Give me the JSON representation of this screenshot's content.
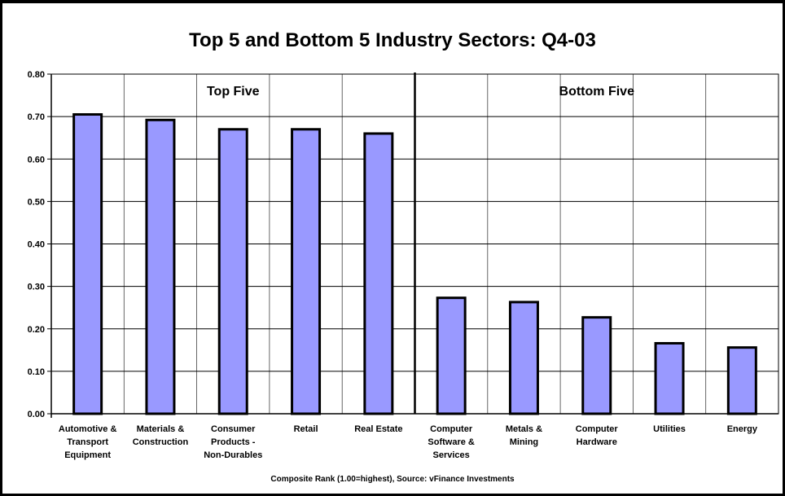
{
  "chart_data": {
    "type": "bar",
    "title": "Top 5 and Bottom 5 Industry Sectors: Q4-03",
    "xlabel": "Composite Rank (1.00=highest), Source: vFinance Investments",
    "ylabel": "",
    "ylim": [
      0,
      0.8
    ],
    "yticks": [
      "0.00",
      "0.10",
      "0.20",
      "0.30",
      "0.40",
      "0.50",
      "0.60",
      "0.70",
      "0.80"
    ],
    "ytick_values": [
      0,
      0.1,
      0.2,
      0.3,
      0.4,
      0.5,
      0.6,
      0.7,
      0.8
    ],
    "categories": [
      [
        "Automotive &",
        "Transport",
        "Equipment"
      ],
      [
        "Materials &",
        "Construction"
      ],
      [
        "Consumer",
        "Products -",
        "Non-Durables"
      ],
      [
        "Retail"
      ],
      [
        "Real Estate"
      ],
      [
        "Computer",
        "Software &",
        "Services"
      ],
      [
        "Metals &",
        "Mining"
      ],
      [
        "Computer",
        "Hardware"
      ],
      [
        "Utilities"
      ],
      [
        "Energy"
      ]
    ],
    "values": [
      0.705,
      0.692,
      0.67,
      0.67,
      0.66,
      0.273,
      0.263,
      0.227,
      0.166,
      0.156
    ],
    "groups": [
      {
        "label": "Top Five",
        "start": 0,
        "end": 4
      },
      {
        "label": "Bottom Five",
        "start": 5,
        "end": 9
      }
    ],
    "bar_color": "#9999ff",
    "grid": true,
    "legend": "none"
  }
}
